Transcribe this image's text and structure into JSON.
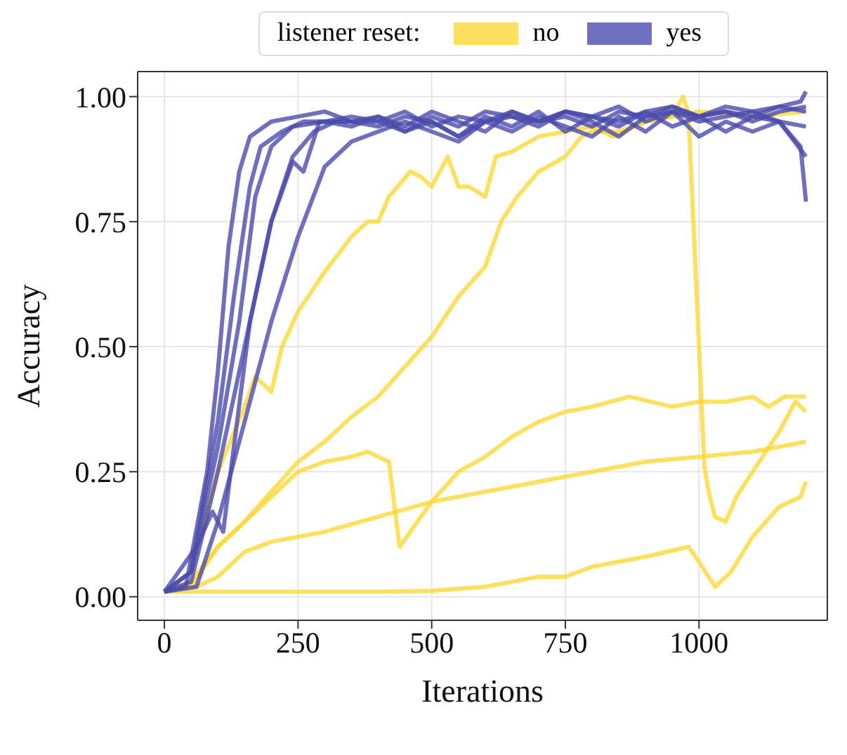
{
  "chart_data": {
    "type": "line",
    "xlabel": "Iterations",
    "ylabel": "Accuracy",
    "legend_title": "listener reset:",
    "legend": "top",
    "grid": true,
    "xlim": [
      -50,
      1240
    ],
    "ylim": [
      -0.047,
      1.05
    ],
    "xticks": [
      0,
      250,
      500,
      750,
      1000
    ],
    "yticks": [
      {
        "value": 0,
        "label": "0.00"
      },
      {
        "value": 0.25,
        "label": "0.25"
      },
      {
        "value": 0.5,
        "label": "0.50"
      },
      {
        "value": 0.75,
        "label": "0.75"
      },
      {
        "value": 1,
        "label": "1.00"
      }
    ],
    "series": [
      {
        "name": "no",
        "color": "#fdd835",
        "x": [
          0,
          50,
          100,
          150,
          170,
          200,
          220,
          250,
          300,
          350,
          380,
          400,
          420,
          460,
          480,
          500,
          530,
          550,
          570,
          600,
          620,
          650,
          700,
          750,
          800,
          840,
          900,
          1000,
          1100,
          1200
        ],
        "values": [
          0.01,
          0.05,
          0.25,
          0.38,
          0.44,
          0.41,
          0.5,
          0.57,
          0.65,
          0.72,
          0.75,
          0.75,
          0.8,
          0.85,
          0.84,
          0.82,
          0.88,
          0.82,
          0.82,
          0.8,
          0.88,
          0.89,
          0.92,
          0.93,
          0.94,
          0.92,
          0.95,
          0.97,
          0.96,
          0.97
        ]
      },
      {
        "color": "#fdd835",
        "x": [
          0,
          50,
          100,
          150,
          200,
          250,
          300,
          350,
          400,
          450,
          500,
          550,
          600,
          630,
          660,
          700,
          750,
          780,
          800,
          850,
          900,
          950,
          970,
          980,
          1000,
          1010,
          1020,
          1030,
          1050,
          1070,
          1100,
          1150,
          1180,
          1200
        ],
        "values": [
          0.01,
          0.02,
          0.1,
          0.15,
          0.21,
          0.27,
          0.31,
          0.36,
          0.4,
          0.46,
          0.52,
          0.6,
          0.66,
          0.75,
          0.8,
          0.85,
          0.88,
          0.92,
          0.93,
          0.93,
          0.95,
          0.96,
          1.0,
          0.97,
          0.5,
          0.26,
          0.2,
          0.16,
          0.15,
          0.2,
          0.25,
          0.33,
          0.39,
          0.37
        ]
      },
      {
        "color": "#fdd835",
        "x": [
          0,
          50,
          100,
          150,
          200,
          250,
          300,
          350,
          380,
          400,
          420,
          440,
          460,
          500,
          550,
          600,
          650,
          700,
          750,
          800,
          870,
          950,
          1000,
          1050,
          1100,
          1130,
          1160,
          1200
        ],
        "values": [
          0.01,
          0.03,
          0.1,
          0.15,
          0.2,
          0.25,
          0.27,
          0.28,
          0.29,
          0.28,
          0.27,
          0.1,
          0.13,
          0.19,
          0.25,
          0.28,
          0.32,
          0.35,
          0.37,
          0.38,
          0.4,
          0.38,
          0.39,
          0.39,
          0.4,
          0.38,
          0.4,
          0.4
        ]
      },
      {
        "color": "#fdd835",
        "x": [
          0,
          60,
          100,
          150,
          200,
          300,
          400,
          500,
          600,
          700,
          800,
          900,
          1000,
          1100,
          1200
        ],
        "values": [
          0.01,
          0.02,
          0.04,
          0.09,
          0.11,
          0.13,
          0.16,
          0.19,
          0.21,
          0.23,
          0.25,
          0.27,
          0.28,
          0.29,
          0.31
        ]
      },
      {
        "color": "#fdd835",
        "x": [
          0,
          200,
          400,
          500,
          600,
          700,
          750,
          800,
          900,
          980,
          1000,
          1030,
          1060,
          1100,
          1150,
          1190,
          1200
        ],
        "values": [
          0.01,
          0.01,
          0.01,
          0.012,
          0.02,
          0.04,
          0.04,
          0.06,
          0.08,
          0.1,
          0.07,
          0.02,
          0.05,
          0.12,
          0.18,
          0.2,
          0.23
        ]
      },
      {
        "name": "yes",
        "color": "#4b4bae",
        "x": [
          0,
          40,
          80,
          100,
          120,
          140,
          160,
          200,
          250,
          300,
          350,
          400,
          450,
          500,
          550,
          600,
          650,
          700,
          750,
          800,
          850,
          900,
          950,
          1000,
          1050,
          1100,
          1150,
          1200
        ],
        "values": [
          0.01,
          0.02,
          0.25,
          0.45,
          0.7,
          0.85,
          0.92,
          0.95,
          0.96,
          0.97,
          0.95,
          0.96,
          0.94,
          0.97,
          0.95,
          0.93,
          0.97,
          0.95,
          0.96,
          0.94,
          0.97,
          0.96,
          0.98,
          0.96,
          0.97,
          0.95,
          0.97,
          0.98
        ]
      },
      {
        "color": "#4b4bae",
        "x": [
          0,
          50,
          100,
          130,
          160,
          180,
          220,
          260,
          300,
          350,
          400,
          450,
          500,
          550,
          600,
          650,
          700,
          750,
          800,
          850,
          900,
          950,
          1000,
          1050,
          1100,
          1150,
          1200
        ],
        "values": [
          0.01,
          0.05,
          0.35,
          0.6,
          0.82,
          0.9,
          0.93,
          0.95,
          0.95,
          0.94,
          0.96,
          0.93,
          0.95,
          0.92,
          0.96,
          0.94,
          0.97,
          0.93,
          0.96,
          0.95,
          0.97,
          0.94,
          0.96,
          0.93,
          0.96,
          0.95,
          0.94
        ]
      },
      {
        "color": "#4b4bae",
        "x": [
          0,
          60,
          90,
          110,
          130,
          160,
          200,
          240,
          260,
          290,
          350,
          400,
          450,
          500,
          550,
          600,
          650,
          700,
          750,
          800,
          850,
          900,
          950,
          1000,
          1050,
          1100,
          1150,
          1190,
          1200
        ],
        "values": [
          0.01,
          0.1,
          0.17,
          0.13,
          0.3,
          0.55,
          0.75,
          0.87,
          0.85,
          0.95,
          0.95,
          0.94,
          0.96,
          0.95,
          0.92,
          0.95,
          0.96,
          0.94,
          0.97,
          0.95,
          0.92,
          0.96,
          0.97,
          0.95,
          0.96,
          0.97,
          0.95,
          0.9,
          0.79
        ]
      },
      {
        "color": "#4b4bae",
        "x": [
          0,
          50,
          100,
          150,
          200,
          240,
          280,
          320,
          400,
          450,
          500,
          550,
          600,
          650,
          700,
          750,
          800,
          850,
          900,
          950,
          1000,
          1050,
          1100,
          1150,
          1190,
          1200
        ],
        "values": [
          0.01,
          0.03,
          0.25,
          0.5,
          0.75,
          0.88,
          0.93,
          0.95,
          0.95,
          0.97,
          0.94,
          0.96,
          0.95,
          0.97,
          0.95,
          0.97,
          0.96,
          0.98,
          0.95,
          0.97,
          0.96,
          0.98,
          0.97,
          0.98,
          0.99,
          1.01
        ]
      },
      {
        "color": "#4b4bae",
        "x": [
          0,
          60,
          100,
          150,
          200,
          250,
          300,
          350,
          400,
          450,
          500,
          550,
          600,
          650,
          700,
          750,
          800,
          850,
          900,
          950,
          1000,
          1050,
          1100,
          1150,
          1200
        ],
        "values": [
          0.01,
          0.02,
          0.15,
          0.35,
          0.55,
          0.72,
          0.86,
          0.91,
          0.93,
          0.95,
          0.93,
          0.91,
          0.95,
          0.93,
          0.96,
          0.94,
          0.92,
          0.96,
          0.93,
          0.97,
          0.92,
          0.95,
          0.93,
          0.95,
          0.88
        ]
      },
      {
        "color": "#4b4bae",
        "x": [
          0,
          50,
          100,
          140,
          170,
          200,
          240,
          300,
          350,
          400,
          450,
          500,
          550,
          600,
          650,
          700,
          750,
          800,
          850,
          900,
          950,
          1000,
          1050,
          1100,
          1150,
          1200
        ],
        "values": [
          0.01,
          0.05,
          0.3,
          0.55,
          0.8,
          0.9,
          0.94,
          0.95,
          0.96,
          0.95,
          0.93,
          0.96,
          0.94,
          0.97,
          0.96,
          0.95,
          0.97,
          0.96,
          0.94,
          0.97,
          0.98,
          0.96,
          0.97,
          0.96,
          0.98,
          0.97
        ]
      }
    ]
  }
}
